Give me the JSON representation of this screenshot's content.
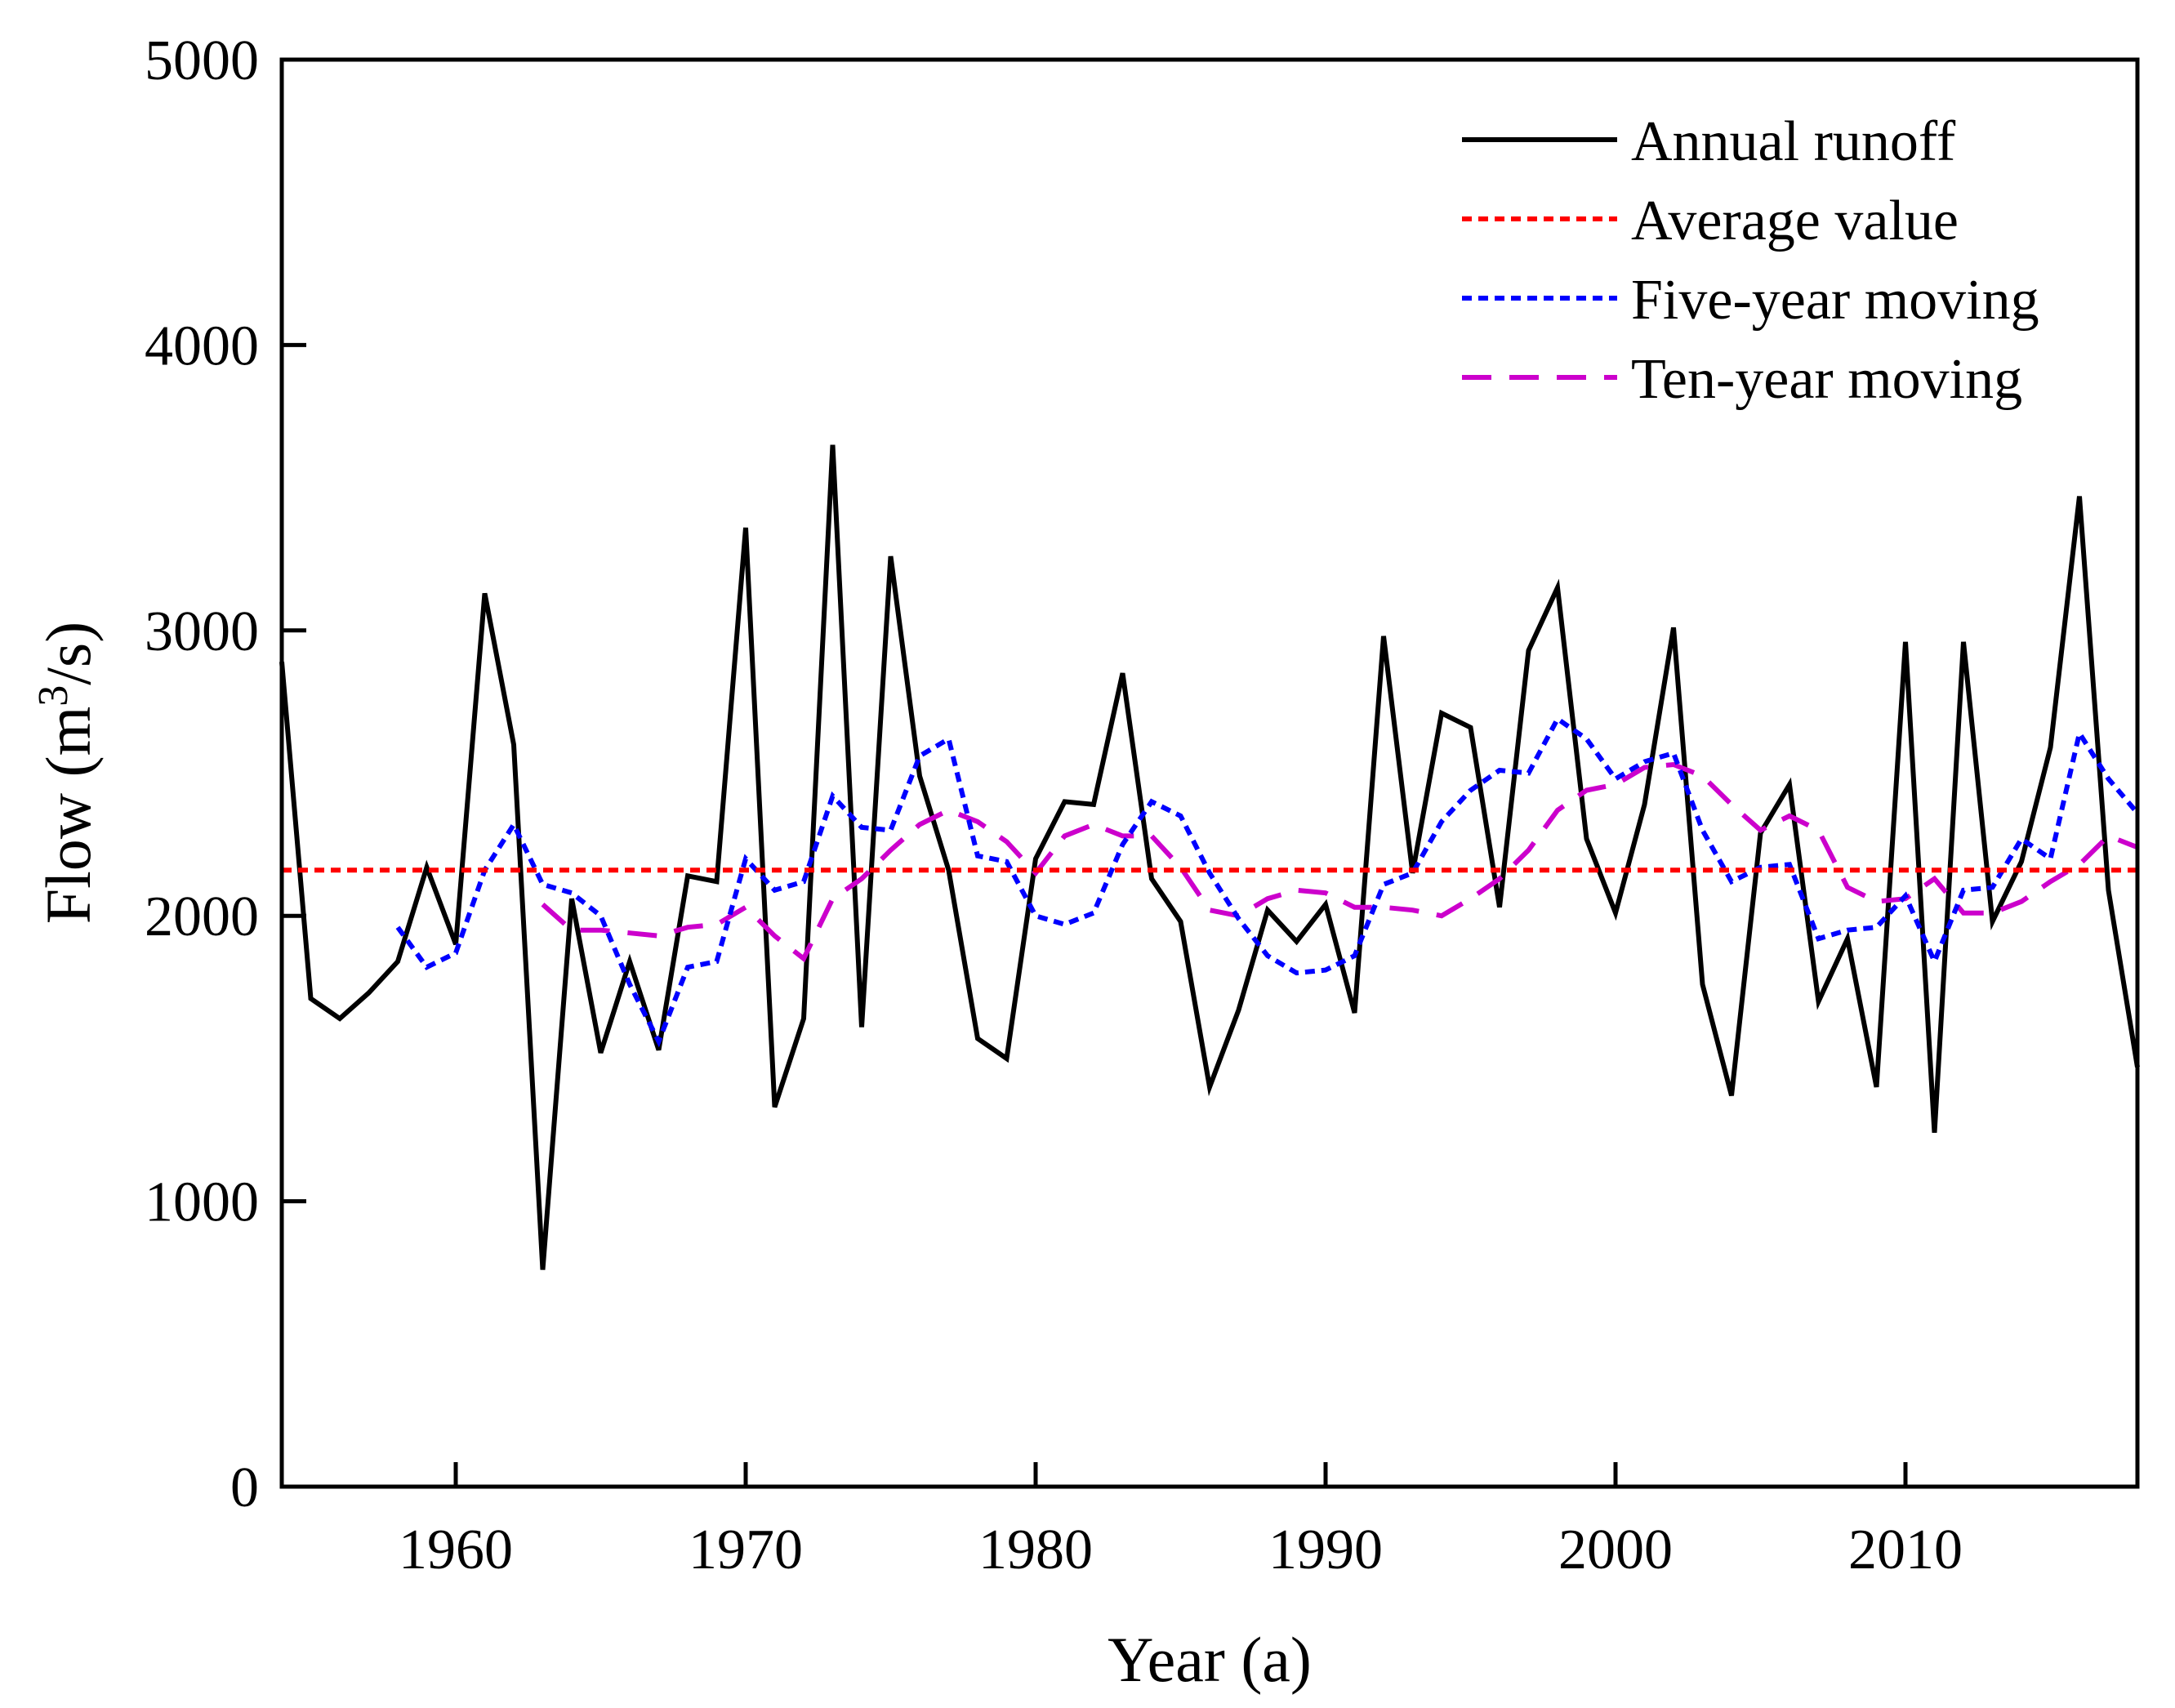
{
  "chart_data": {
    "type": "line",
    "title": "",
    "xlabel": "Year (a)",
    "ylabel_main": "Flow (m",
    "ylabel_sup": "3",
    "ylabel_tail": "/s)",
    "xlim": [
      1954,
      2018
    ],
    "ylim": [
      0,
      5000
    ],
    "xticks": [
      1960,
      1970,
      1980,
      1990,
      2000,
      2010
    ],
    "xtick_labels": [
      "1960",
      "1970",
      "1980",
      "1990",
      "2000",
      "2010"
    ],
    "yticks": [
      0,
      1000,
      2000,
      3000,
      4000,
      5000
    ],
    "ytick_labels": [
      "0",
      "1000",
      "2000",
      "3000",
      "4000",
      "5000"
    ],
    "legend_position": "top-right",
    "series": [
      {
        "name": "Annual runoff",
        "color": "#000000",
        "style": "solid",
        "x": [
          1954,
          1955,
          1956,
          1957,
          1958,
          1959,
          1960,
          1961,
          1962,
          1963,
          1964,
          1965,
          1966,
          1967,
          1968,
          1969,
          1970,
          1971,
          1972,
          1973,
          1974,
          1975,
          1976,
          1977,
          1978,
          1979,
          1980,
          1981,
          1982,
          1983,
          1984,
          1985,
          1986,
          1987,
          1988,
          1989,
          1990,
          1991,
          1992,
          1993,
          1994,
          1995,
          1996,
          1997,
          1998,
          1999,
          2000,
          2001,
          2002,
          2003,
          2004,
          2005,
          2006,
          2007,
          2008,
          2009,
          2010,
          2011,
          2012,
          2013,
          2014,
          2015,
          2016,
          2017,
          2018
        ],
        "values": [
          2890,
          1710,
          1640,
          1730,
          1840,
          2170,
          1900,
          3130,
          2600,
          760,
          2060,
          1520,
          1840,
          1530,
          2140,
          2120,
          3360,
          1330,
          1640,
          3650,
          1610,
          3260,
          2490,
          2160,
          1570,
          1500,
          2200,
          2400,
          2390,
          2850,
          2130,
          1980,
          1400,
          1670,
          2020,
          1910,
          2040,
          1660,
          2980,
          2150,
          2710,
          2660,
          2030,
          2930,
          3150,
          2270,
          2010,
          2390,
          3010,
          1760,
          1370,
          2290,
          2460,
          1700,
          1920,
          1400,
          2960,
          1240,
          2960,
          1980,
          2190,
          2590,
          3470,
          2090,
          1470
        ]
      },
      {
        "name": "Average value",
        "color": "#ff0000",
        "style": "dotted",
        "x": [
          1954,
          2018
        ],
        "values": [
          2160,
          2160
        ]
      },
      {
        "name": "Five-year moving",
        "color": "#0000ff",
        "style": "dotted",
        "x": [
          1958,
          1959,
          1960,
          1961,
          1962,
          1963,
          1964,
          1965,
          1966,
          1967,
          1968,
          1969,
          1970,
          1971,
          1972,
          1973,
          1974,
          1975,
          1976,
          1977,
          1978,
          1979,
          1980,
          1981,
          1982,
          1983,
          1984,
          1985,
          1986,
          1987,
          1988,
          1989,
          1990,
          1991,
          1992,
          1993,
          1994,
          1995,
          1996,
          1997,
          1998,
          1999,
          2000,
          2001,
          2002,
          2003,
          2004,
          2005,
          2006,
          2007,
          2008,
          2009,
          2010,
          2011,
          2012,
          2013,
          2014,
          2015,
          2016,
          2017,
          2018
        ],
        "values": [
          1960,
          1820,
          1870,
          2160,
          2320,
          2110,
          2080,
          2000,
          1760,
          1560,
          1820,
          1840,
          2200,
          2090,
          2120,
          2420,
          2310,
          2300,
          2560,
          2620,
          2210,
          2190,
          2000,
          1970,
          2010,
          2250,
          2400,
          2350,
          2150,
          1990,
          1860,
          1800,
          1810,
          1860,
          2110,
          2150,
          2330,
          2440,
          2510,
          2500,
          2690,
          2620,
          2480,
          2540,
          2570,
          2300,
          2120,
          2170,
          2180,
          1920,
          1950,
          1960,
          2070,
          1840,
          2090,
          2100,
          2270,
          2200,
          2640,
          2480,
          2360
        ]
      },
      {
        "name": "Ten-year moving",
        "color": "#cc00cc",
        "style": "dashed",
        "x": [
          1963,
          1964,
          1965,
          1966,
          1967,
          1968,
          1969,
          1970,
          1971,
          1972,
          1973,
          1974,
          1975,
          1976,
          1977,
          1978,
          1979,
          1980,
          1981,
          1982,
          1983,
          1984,
          1985,
          1986,
          1987,
          1988,
          1989,
          1990,
          1991,
          1992,
          1993,
          1994,
          1995,
          1996,
          1997,
          1998,
          1999,
          2000,
          2001,
          2002,
          2003,
          2004,
          2005,
          2006,
          2007,
          2008,
          2009,
          2010,
          2011,
          2012,
          2013,
          2014,
          2015,
          2016,
          2017,
          2018
        ],
        "values": [
          2040,
          1950,
          1950,
          1940,
          1930,
          1960,
          1970,
          2030,
          1930,
          1850,
          2060,
          2130,
          2230,
          2320,
          2370,
          2330,
          2260,
          2150,
          2280,
          2320,
          2280,
          2280,
          2170,
          2020,
          2000,
          2060,
          2090,
          2080,
          2030,
          2030,
          2020,
          2000,
          2060,
          2130,
          2230,
          2370,
          2440,
          2460,
          2520,
          2530,
          2490,
          2390,
          2300,
          2350,
          2300,
          2100,
          2050,
          2060,
          2130,
          2010,
          2010,
          2050,
          2120,
          2180,
          2280,
          2240
        ]
      }
    ]
  }
}
